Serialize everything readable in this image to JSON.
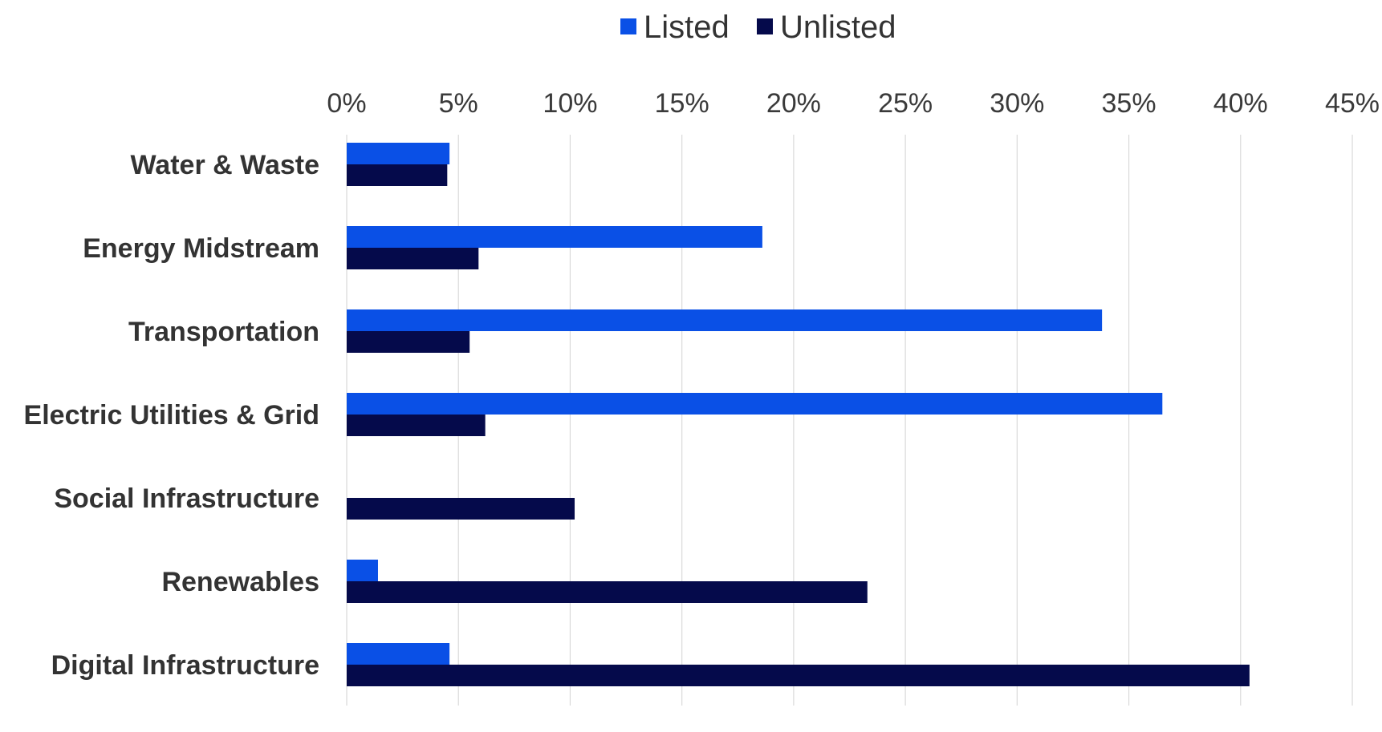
{
  "chart_data": {
    "type": "bar",
    "orientation": "horizontal",
    "categories": [
      "Water & Waste",
      "Energy Midstream",
      "Transportation",
      "Electric Utilities & Grid",
      "Social Infrastructure",
      "Renewables",
      "Digital Infrastructure"
    ],
    "series": [
      {
        "name": "Listed",
        "color": "#0a50e6",
        "values": [
          4.6,
          18.6,
          33.8,
          36.5,
          0,
          1.4,
          4.6
        ]
      },
      {
        "name": "Unlisted",
        "color": "#050a4b",
        "values": [
          4.5,
          5.9,
          5.5,
          6.2,
          10.2,
          23.3,
          40.4
        ]
      }
    ],
    "xlim": [
      0,
      45
    ],
    "xticks": [
      0,
      5,
      10,
      15,
      20,
      25,
      30,
      35,
      40,
      45
    ],
    "xtick_labels": [
      "0%",
      "5%",
      "10%",
      "15%",
      "20%",
      "25%",
      "30%",
      "35%",
      "40%",
      "45%"
    ],
    "x_axis_position": "top",
    "grid": true,
    "legend": {
      "position": "top-center",
      "entries": [
        "Listed",
        "Unlisted"
      ]
    },
    "title": "",
    "xlabel": "",
    "ylabel": ""
  }
}
